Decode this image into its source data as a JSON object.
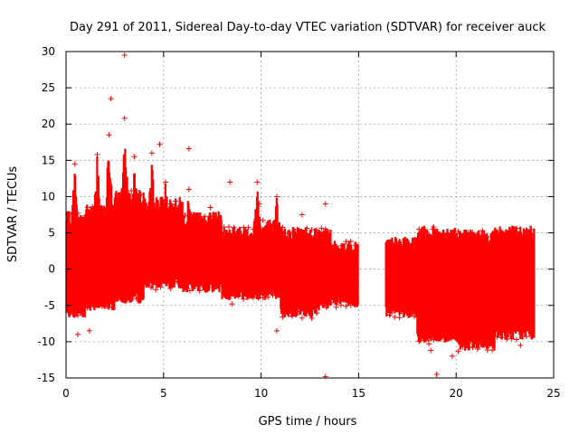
{
  "chart_data": {
    "type": "scatter",
    "title": "Day 291 of 2011, Sidereal Day-to-day VTEC variation (SDTVAR) for receiver auck",
    "xlabel": "GPS time / hours",
    "ylabel": "SDTVAR / TECUs",
    "xlim": [
      0,
      25
    ],
    "ylim": [
      -15,
      30
    ],
    "xticks": [
      0,
      5,
      10,
      15,
      20,
      25
    ],
    "yticks": [
      -15,
      -10,
      -5,
      0,
      5,
      10,
      15,
      20,
      25,
      30
    ],
    "grid": true,
    "marker": "+",
    "color": "#ff0000",
    "bands": [
      {
        "x0": 0.0,
        "x1": 1.0,
        "ymin": -6,
        "ymax": 7
      },
      {
        "x0": 1.0,
        "x1": 2.5,
        "ymin": -5,
        "ymax": 8
      },
      {
        "x0": 2.5,
        "x1": 4.0,
        "ymin": -4,
        "ymax": 10
      },
      {
        "x0": 4.0,
        "x1": 6.0,
        "ymin": -2,
        "ymax": 9
      },
      {
        "x0": 6.0,
        "x1": 8.0,
        "ymin": -2.5,
        "ymax": 7
      },
      {
        "x0": 8.0,
        "x1": 10.0,
        "ymin": -3.5,
        "ymax": 5
      },
      {
        "x0": 10.0,
        "x1": 11.0,
        "ymin": -3.5,
        "ymax": 6
      },
      {
        "x0": 11.0,
        "x1": 13.0,
        "ymin": -6,
        "ymax": 5
      },
      {
        "x0": 13.0,
        "x1": 13.6,
        "ymin": -5,
        "ymax": 5
      },
      {
        "x0": 13.6,
        "x1": 15.0,
        "ymin": -4.5,
        "ymax": 3
      },
      {
        "x0": 16.4,
        "x1": 18.0,
        "ymin": -6,
        "ymax": 3.5
      },
      {
        "x0": 18.0,
        "x1": 20.0,
        "ymin": -9.5,
        "ymax": 5
      },
      {
        "x0": 20.0,
        "x1": 22.0,
        "ymin": -10.5,
        "ymax": 4.5
      },
      {
        "x0": 22.0,
        "x1": 24.0,
        "ymin": -9,
        "ymax": 5
      }
    ],
    "spikes": [
      {
        "x": 0.45,
        "y": 14.5
      },
      {
        "x": 1.6,
        "y": 15.8
      },
      {
        "x": 2.2,
        "y": 18.5
      },
      {
        "x": 3.0,
        "y": 20.8
      },
      {
        "x": 3.5,
        "y": 15.5
      },
      {
        "x": 4.4,
        "y": 16.0
      },
      {
        "x": 5.1,
        "y": 12.0
      },
      {
        "x": 6.3,
        "y": 11.0
      },
      {
        "x": 7.4,
        "y": 8.5
      },
      {
        "x": 9.8,
        "y": 12.0
      },
      {
        "x": 10.8,
        "y": 10.0
      },
      {
        "x": 13.3,
        "y": 5.5
      }
    ],
    "outliers": [
      {
        "x": 3.0,
        "y": 29.5
      },
      {
        "x": 2.3,
        "y": 23.5
      },
      {
        "x": 4.8,
        "y": 17.2
      },
      {
        "x": 6.3,
        "y": 16.6
      },
      {
        "x": 8.4,
        "y": 12.0
      },
      {
        "x": 9.9,
        "y": 9.0
      },
      {
        "x": 12.1,
        "y": 7.5
      },
      {
        "x": 13.3,
        "y": 9.0
      },
      {
        "x": 13.3,
        "y": -14.8
      },
      {
        "x": 10.8,
        "y": -8.5
      },
      {
        "x": 0.6,
        "y": -9.0
      },
      {
        "x": 1.2,
        "y": -8.5
      },
      {
        "x": 8.5,
        "y": -4.8
      },
      {
        "x": 18.7,
        "y": -11.2
      },
      {
        "x": 19.0,
        "y": -14.5
      },
      {
        "x": 19.8,
        "y": -12.0
      },
      {
        "x": 18.8,
        "y": 5.5
      },
      {
        "x": 23.3,
        "y": -10.5
      }
    ]
  }
}
